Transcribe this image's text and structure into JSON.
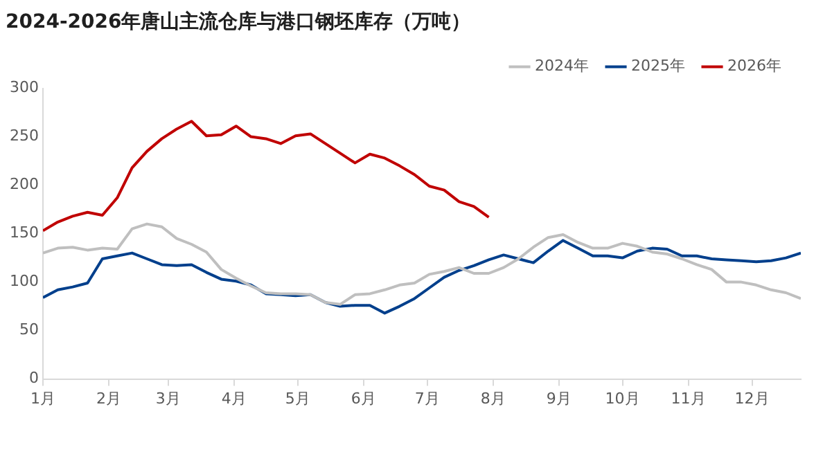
{
  "chart_data": {
    "type": "line",
    "title": "2024-2026年唐山主流仓库与港口钢坯库存（万吨）",
    "x": [
      "--01-01",
      "--01-08",
      "--01-15",
      "--01-22",
      "--01-29",
      "--02-05",
      "--02-12",
      "--02-19",
      "--02-26",
      "--03-05",
      "--03-12",
      "--03-19",
      "--03-26",
      "--04-02",
      "--04-09",
      "--04-16",
      "--04-23",
      "--04-30",
      "--05-07",
      "--05-14",
      "--05-21",
      "--05-28",
      "--06-04",
      "--06-11",
      "--06-18",
      "--06-25",
      "--07-02",
      "--07-09",
      "--07-16",
      "--07-23",
      "--07-30",
      "--08-06",
      "--08-13",
      "--08-20",
      "--08-27",
      "--09-03",
      "--09-10",
      "--09-17",
      "--09-24",
      "--10-01",
      "--10-08",
      "--10-15",
      "--10-22",
      "--10-29",
      "--11-05",
      "--11-12",
      "--11-19",
      "--11-26",
      "--12-03",
      "--12-10",
      "--12-17",
      "--12-24"
    ],
    "series": [
      {
        "name": "2024年",
        "color": "#bfbfbf",
        "values": [
          130,
          135,
          136,
          133,
          135,
          134,
          155,
          160,
          157,
          145,
          139,
          131,
          113,
          104,
          96,
          89,
          88,
          88,
          87,
          79,
          77,
          87,
          88,
          92,
          97,
          99,
          108,
          111,
          115,
          109,
          109,
          115,
          124,
          136,
          146,
          149,
          141,
          135,
          135,
          140,
          137,
          131,
          129,
          124,
          118,
          113,
          100,
          100,
          97,
          92,
          89,
          83
        ]
      },
      {
        "name": "2025年",
        "color": "#003f8c",
        "values": [
          84,
          92,
          95,
          99,
          124,
          127,
          130,
          124,
          118,
          117,
          118,
          110,
          103,
          101,
          97,
          88,
          87,
          86,
          87,
          79,
          75,
          76,
          76,
          68,
          75,
          83,
          94,
          105,
          112,
          117,
          123,
          128,
          124,
          120,
          132,
          143,
          135,
          127,
          127,
          125,
          132,
          135,
          134,
          127,
          127,
          124,
          123,
          122,
          121,
          122,
          125,
          130
        ]
      },
      {
        "name": "2026年",
        "color": "#c00000",
        "x": [
          "--01-01",
          "--01-08",
          "--01-15",
          "--01-22",
          "--01-29",
          "--02-05",
          "--02-12",
          "--02-19",
          "--02-26",
          "--03-05",
          "--03-12",
          "--03-19",
          "--03-26",
          "--04-02",
          "--04-09",
          "--04-16",
          "--04-23",
          "--04-30",
          "--05-07",
          "--05-14",
          "--05-21",
          "--05-28",
          "--06-04",
          "--06-11",
          "--06-18",
          "--06-25",
          "--07-02",
          "--07-09",
          "--07-16",
          "--07-23",
          "--07-30"
        ],
        "values": [
          153,
          162,
          168,
          172,
          169,
          187,
          218,
          235,
          248,
          258,
          266,
          251,
          252,
          261,
          250,
          248,
          243,
          251,
          253,
          243,
          233,
          223,
          232,
          228,
          220,
          211,
          199,
          195,
          183,
          178,
          167
        ]
      }
    ],
    "xlim": [
      "--01-01",
      "--12-24"
    ],
    "xticks": [
      {
        "value": "--01-01",
        "label": "1月"
      },
      {
        "value": "--02-01",
        "label": "2月"
      },
      {
        "value": "--03-01",
        "label": "3月"
      },
      {
        "value": "--04-01",
        "label": "4月"
      },
      {
        "value": "--05-01",
        "label": "5月"
      },
      {
        "value": "--06-01",
        "label": "6月"
      },
      {
        "value": "--07-01",
        "label": "7月"
      },
      {
        "value": "--08-01",
        "label": "8月"
      },
      {
        "value": "--09-01",
        "label": "9月"
      },
      {
        "value": "--10-01",
        "label": "10月"
      },
      {
        "value": "--11-01",
        "label": "11月"
      },
      {
        "value": "--12-01",
        "label": "12月"
      }
    ],
    "ylim": [
      0,
      300
    ],
    "yticks": [
      0,
      50,
      100,
      150,
      200,
      250,
      300
    ],
    "grid": false,
    "legend": "top right",
    "marker": "none",
    "line_style": "solid"
  }
}
